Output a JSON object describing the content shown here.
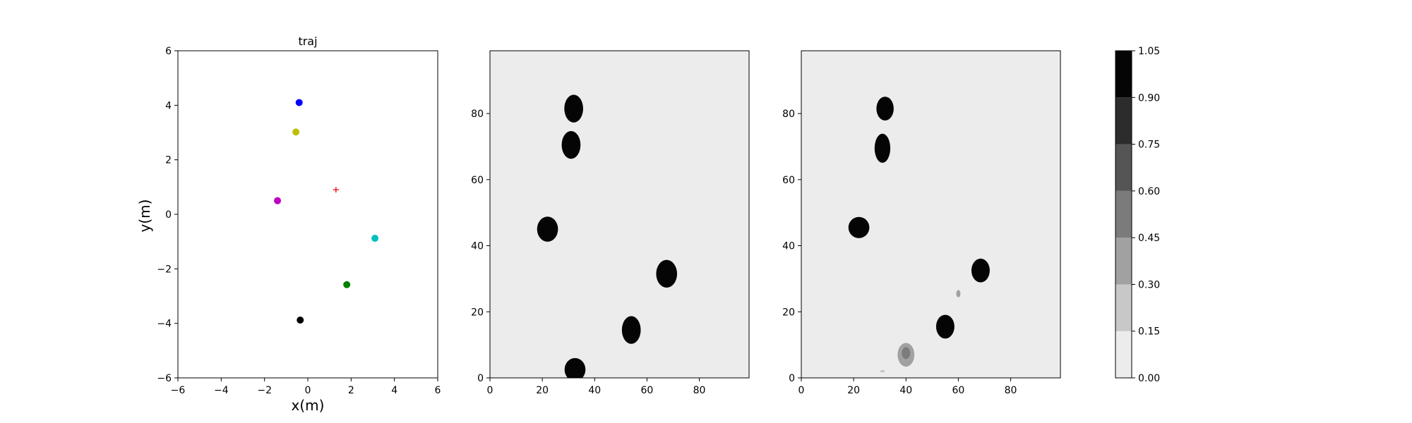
{
  "chart_data": [
    {
      "type": "scatter",
      "title": "traj",
      "xlabel": "x(m)",
      "ylabel": "y(m)",
      "xlim": [
        -6,
        6
      ],
      "ylim": [
        -6,
        6
      ],
      "xticks": [
        -6,
        -4,
        -2,
        0,
        2,
        4,
        6
      ],
      "yticks": [
        -6,
        -4,
        -2,
        0,
        2,
        4,
        6
      ],
      "xtick_labels": [
        "−6",
        "−4",
        "−2",
        "0",
        "2",
        "4",
        "6"
      ],
      "ytick_labels": [
        "−6",
        "−4",
        "−2",
        "0",
        "2",
        "4",
        "6"
      ],
      "points": [
        {
          "x": -0.4,
          "y": 4.1,
          "color": "#0000ff",
          "marker": "circle"
        },
        {
          "x": -0.55,
          "y": 3.02,
          "color": "#bfbf00",
          "marker": "circle"
        },
        {
          "x": -1.4,
          "y": 0.5,
          "color": "#bf00bf",
          "marker": "circle"
        },
        {
          "x": 3.1,
          "y": -0.88,
          "color": "#00bfbf",
          "marker": "circle"
        },
        {
          "x": 1.8,
          "y": -2.58,
          "color": "#008000",
          "marker": "circle"
        },
        {
          "x": -0.35,
          "y": -3.88,
          "color": "#000000",
          "marker": "circle"
        },
        {
          "x": 1.3,
          "y": 0.9,
          "color": "#ff0000",
          "marker": "plus"
        }
      ]
    },
    {
      "type": "heatmap",
      "xlim": [
        0,
        99
      ],
      "ylim": [
        0,
        99
      ],
      "xticks": [
        0,
        20,
        40,
        60,
        80
      ],
      "yticks": [
        0,
        20,
        40,
        60,
        80
      ],
      "xtick_labels": [
        "0",
        "20",
        "40",
        "60",
        "80"
      ],
      "ytick_labels": [
        "0",
        "20",
        "40",
        "60",
        "80"
      ],
      "background_color": "#ececec",
      "blobs": [
        {
          "x": 32,
          "y": 81.5,
          "rx": 3.6,
          "ry": 4.2,
          "level": 1.0
        },
        {
          "x": 31,
          "y": 70.5,
          "rx": 3.6,
          "ry": 4.2,
          "level": 1.0
        },
        {
          "x": 22,
          "y": 45,
          "rx": 4.0,
          "ry": 3.8,
          "level": 1.0
        },
        {
          "x": 67.5,
          "y": 31.5,
          "rx": 4.0,
          "ry": 4.2,
          "level": 1.0
        },
        {
          "x": 54,
          "y": 14.5,
          "rx": 3.6,
          "ry": 4.2,
          "level": 1.0
        },
        {
          "x": 32.5,
          "y": 2.5,
          "rx": 4.0,
          "ry": 3.5,
          "level": 1.0
        }
      ]
    },
    {
      "type": "heatmap",
      "xlim": [
        0,
        99
      ],
      "ylim": [
        0,
        99
      ],
      "xticks": [
        0,
        20,
        40,
        60,
        80
      ],
      "yticks": [
        0,
        20,
        40,
        60,
        80
      ],
      "xtick_labels": [
        "0",
        "20",
        "40",
        "60",
        "80"
      ],
      "ytick_labels": [
        "0",
        "20",
        "40",
        "60",
        "80"
      ],
      "background_color": "#ececec",
      "blobs": [
        {
          "x": 32,
          "y": 81.5,
          "rx": 3.3,
          "ry": 3.6,
          "level": 1.0
        },
        {
          "x": 31,
          "y": 69.5,
          "rx": 3.0,
          "ry": 4.4,
          "level": 1.0
        },
        {
          "x": 22,
          "y": 45.5,
          "rx": 4.0,
          "ry": 3.2,
          "level": 1.0
        },
        {
          "x": 68.5,
          "y": 32.5,
          "rx": 3.5,
          "ry": 3.6,
          "level": 1.0
        },
        {
          "x": 55,
          "y": 15.5,
          "rx": 3.5,
          "ry": 3.6,
          "level": 1.0
        },
        {
          "x": 40,
          "y": 7,
          "rx": 3.2,
          "ry": 3.6,
          "level": 0.3
        },
        {
          "x": 40,
          "y": 7.5,
          "rx": 1.6,
          "ry": 1.8,
          "level": 0.45
        },
        {
          "x": 60,
          "y": 25.5,
          "rx": 0.8,
          "ry": 1.1,
          "level": 0.3
        },
        {
          "x": 31,
          "y": 2,
          "rx": 0.9,
          "ry": 0.4,
          "level": 0.15
        }
      ]
    }
  ],
  "colorbar": {
    "levels": [
      0.0,
      0.15,
      0.3,
      0.45,
      0.6,
      0.75,
      0.9,
      1.05
    ],
    "tick_labels": [
      "0.00",
      "0.15",
      "0.30",
      "0.45",
      "0.60",
      "0.75",
      "0.90",
      "1.05"
    ],
    "band_colors": [
      "#ececec",
      "#c8c8c8",
      "#a1a1a1",
      "#7b7b7b",
      "#555555",
      "#2c2c2c",
      "#050505"
    ]
  }
}
